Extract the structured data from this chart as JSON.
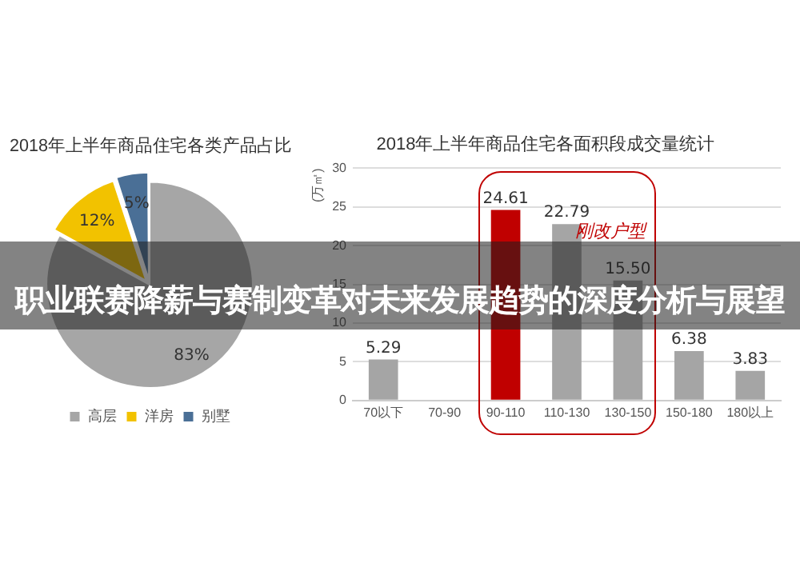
{
  "chart_data": [
    {
      "type": "pie",
      "title": "2018年上半年商品住宅各类产品占比",
      "categories": [
        "高层",
        "洋房",
        "别墅"
      ],
      "values": [
        83,
        12,
        5
      ],
      "colors": [
        "#a6a6a6",
        "#f2c200",
        "#4a6f96"
      ],
      "value_labels": [
        "83%",
        "12%",
        "5%"
      ],
      "legend": "bottom"
    },
    {
      "type": "bar",
      "title": "2018年上半年商品住宅各面积段成交量统计",
      "ylabel": "(万㎡)",
      "categories": [
        "70以下",
        "70-90",
        "90-110",
        "110-130",
        "130-150",
        "150-180",
        "180以上"
      ],
      "values": [
        5.29,
        null,
        24.61,
        22.79,
        15.5,
        6.38,
        3.83
      ],
      "colors": [
        "#a5a5a5",
        "#a5a5a5",
        "#c00000",
        "#a5a5a5",
        "#a5a5a5",
        "#a5a5a5",
        "#a5a5a5"
      ],
      "value_labels": [
        "5.29",
        null,
        "24.61",
        "22.79",
        "15.50",
        "6.38",
        "3.83"
      ],
      "ylim": [
        0,
        30
      ],
      "yticks": [
        0,
        5,
        10,
        15,
        20,
        25,
        30
      ],
      "grid": "y",
      "legend": false,
      "annotations": [
        "刚改户型"
      ]
    },
    {
      "type": "other",
      "title": "职业联赛降薪与赛制变革对未来发展趋势的深度分析与展望"
    }
  ]
}
